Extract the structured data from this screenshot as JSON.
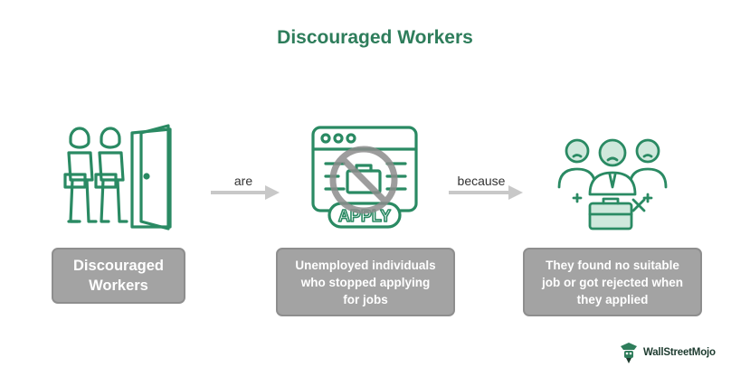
{
  "title": "Discouraged Workers",
  "colors": {
    "accent": "#2e7d5b",
    "icon_stroke": "#2a8a63",
    "box_fill": "#a3a3a3",
    "arrow": "#c8c8c8",
    "text_dark": "#333333"
  },
  "nodes": [
    {
      "id": "workers",
      "icon": "people-walking-out-door-icon",
      "label": "Discouraged\nWorkers"
    },
    {
      "id": "unemployed",
      "icon": "no-apply-icon",
      "label": "Unemployed individuals\nwho stopped applying\nfor jobs"
    },
    {
      "id": "reason",
      "icon": "rejected-people-briefcase-icon",
      "label": "They found no suitable\njob or got rejected when\nthey applied"
    }
  ],
  "edges": [
    {
      "from": "workers",
      "to": "unemployed",
      "label": "are"
    },
    {
      "from": "unemployed",
      "to": "reason",
      "label": "because"
    }
  ],
  "brand": {
    "text": "WallStreetMojo",
    "icon": "wallstreetmojo-logo"
  }
}
